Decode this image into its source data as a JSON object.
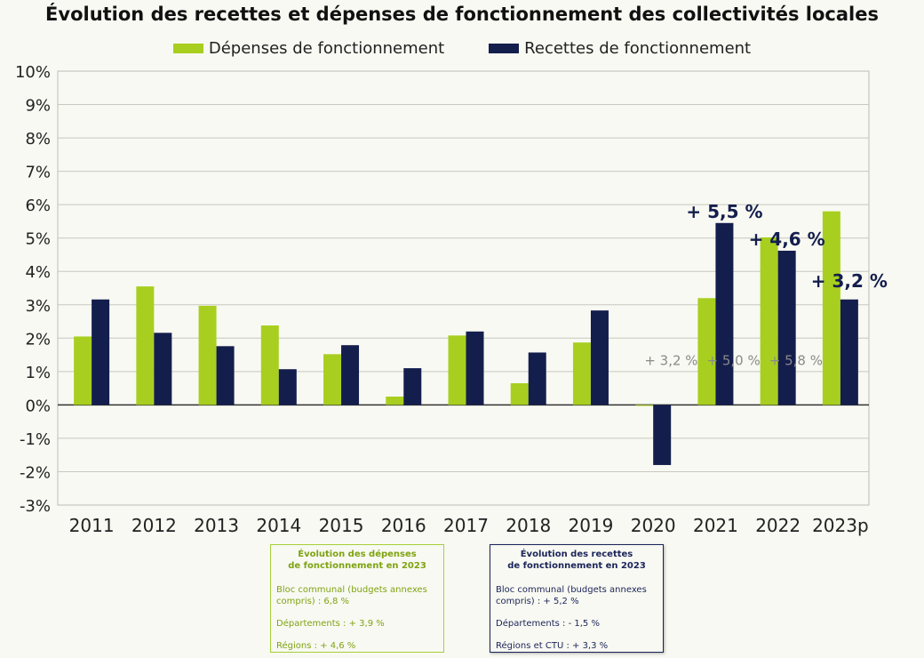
{
  "chart_data": {
    "type": "bar",
    "title": "Évolution des recettes et dépenses de fonctionnement des collectivités locales",
    "categories": [
      "2011",
      "2012",
      "2013",
      "2014",
      "2015",
      "2016",
      "2017",
      "2018",
      "2019",
      "2020",
      "2021",
      "2022",
      "2023p"
    ],
    "series": [
      {
        "name": "Dépenses de fonctionnement",
        "color": "#a8cf1f",
        "values": [
          2.05,
          3.55,
          2.97,
          2.38,
          1.52,
          0.25,
          2.08,
          0.65,
          1.87,
          -0.03,
          3.2,
          5.02,
          5.8
        ]
      },
      {
        "name": "Recettes de fonctionnement",
        "color": "#141e4d",
        "values": [
          3.16,
          2.16,
          1.76,
          1.07,
          1.79,
          1.1,
          2.2,
          1.57,
          2.83,
          -1.8,
          5.45,
          4.62,
          3.16
        ]
      }
    ],
    "ylim": [
      -3,
      10
    ],
    "yticks": [
      "-3%",
      "-2%",
      "-1%",
      "0%",
      "1%",
      "2%",
      "3%",
      "4%",
      "5%",
      "6%",
      "7%",
      "8%",
      "9%",
      "10%"
    ],
    "grid": true,
    "legend_position": "top",
    "annotations_recettes": [
      "+ 5,5 %",
      "+ 4,6 %",
      "+ 3,2 %"
    ],
    "annotations_depenses": [
      "+ 3,2 %",
      "+ 5,0 %",
      "+ 5,8 %"
    ]
  },
  "box_depenses": {
    "title": "Évolution des dépenses\nde fonctionnement en 2023",
    "line1": "Bloc communal (budgets annexes compris) : 6,8 %",
    "line2": "Départements : + 3,9 %",
    "line3": "Régions : + 4,6 %"
  },
  "box_recettes": {
    "title": "Évolution des recettes\nde fonctionnement en 2023",
    "line1": "Bloc communal (budgets annexes compris) : + 5,2 %",
    "line2": "Départements : - 1,5 %",
    "line3": "Régions et CTU : + 3,3 %"
  }
}
